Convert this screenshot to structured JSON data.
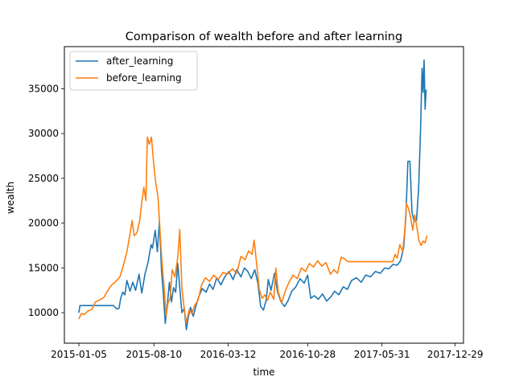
{
  "chart_data": {
    "type": "line",
    "title": "Comparison of wealth before and after learning",
    "xlabel": "time",
    "ylabel": "wealth",
    "x_ticks": [
      "2015-01-05",
      "2015-08-10",
      "2016-03-12",
      "2016-10-28",
      "2017-05-31",
      "2017-12-29"
    ],
    "y_ticks": [
      10000,
      15000,
      20000,
      25000,
      30000,
      35000
    ],
    "xlim": [
      "2014-11-24",
      "2018-01-22"
    ],
    "ylim": [
      6600,
      39700
    ],
    "grid": false,
    "legend_position": "top-left",
    "series": [
      {
        "name": "after_learning",
        "color": "#1f77b4",
        "points": [
          [
            "2015-01-05",
            10000
          ],
          [
            "2015-01-08",
            10800
          ],
          [
            "2015-01-20",
            10800
          ],
          [
            "2015-02-15",
            10800
          ],
          [
            "2015-03-20",
            10800
          ],
          [
            "2015-04-15",
            10800
          ],
          [
            "2015-04-25",
            10400
          ],
          [
            "2015-05-01",
            10500
          ],
          [
            "2015-05-06",
            11600
          ],
          [
            "2015-05-12",
            12300
          ],
          [
            "2015-05-18",
            12000
          ],
          [
            "2015-05-24",
            13600
          ],
          [
            "2015-06-02",
            12400
          ],
          [
            "2015-06-10",
            13400
          ],
          [
            "2015-06-18",
            12500
          ],
          [
            "2015-06-28",
            14300
          ],
          [
            "2015-07-06",
            12200
          ],
          [
            "2015-07-15",
            14300
          ],
          [
            "2015-07-24",
            15600
          ],
          [
            "2015-08-02",
            17600
          ],
          [
            "2015-08-06",
            17200
          ],
          [
            "2015-08-14",
            19200
          ],
          [
            "2015-08-20",
            16800
          ],
          [
            "2015-08-26",
            20200
          ],
          [
            "2015-09-01",
            14700
          ],
          [
            "2015-09-06",
            12300
          ],
          [
            "2015-09-12",
            8800
          ],
          [
            "2015-09-18",
            11000
          ],
          [
            "2015-09-24",
            13400
          ],
          [
            "2015-09-30",
            11200
          ],
          [
            "2015-10-06",
            12800
          ],
          [
            "2015-10-12",
            12300
          ],
          [
            "2015-10-18",
            15500
          ],
          [
            "2015-10-24",
            12800
          ],
          [
            "2015-10-30",
            10000
          ],
          [
            "2015-11-06",
            10500
          ],
          [
            "2015-11-12",
            8100
          ],
          [
            "2015-11-18",
            9600
          ],
          [
            "2015-11-24",
            10600
          ],
          [
            "2015-12-02",
            9600
          ],
          [
            "2015-12-10",
            10800
          ],
          [
            "2015-12-18",
            11800
          ],
          [
            "2015-12-28",
            12700
          ],
          [
            "2016-01-08",
            12300
          ],
          [
            "2016-01-18",
            13200
          ],
          [
            "2016-01-28",
            12600
          ],
          [
            "2016-02-08",
            13900
          ],
          [
            "2016-02-20",
            13100
          ],
          [
            "2016-03-02",
            14000
          ],
          [
            "2016-03-14",
            14600
          ],
          [
            "2016-03-26",
            13700
          ],
          [
            "2016-04-06",
            14800
          ],
          [
            "2016-04-18",
            14000
          ],
          [
            "2016-04-28",
            15000
          ],
          [
            "2016-05-08",
            14600
          ],
          [
            "2016-05-18",
            13800
          ],
          [
            "2016-05-28",
            14800
          ],
          [
            "2016-06-06",
            13300
          ],
          [
            "2016-06-14",
            10700
          ],
          [
            "2016-06-22",
            10300
          ],
          [
            "2016-06-30",
            11400
          ],
          [
            "2016-07-06",
            13700
          ],
          [
            "2016-07-14",
            12500
          ],
          [
            "2016-07-24",
            14400
          ],
          [
            "2016-08-02",
            12300
          ],
          [
            "2016-08-12",
            11200
          ],
          [
            "2016-08-22",
            10700
          ],
          [
            "2016-09-01",
            11300
          ],
          [
            "2016-09-12",
            12400
          ],
          [
            "2016-09-24",
            12900
          ],
          [
            "2016-10-06",
            13800
          ],
          [
            "2016-10-18",
            13300
          ],
          [
            "2016-10-28",
            14200
          ],
          [
            "2016-11-06",
            11600
          ],
          [
            "2016-11-16",
            11900
          ],
          [
            "2016-11-28",
            11500
          ],
          [
            "2016-12-10",
            12100
          ],
          [
            "2016-12-22",
            11300
          ],
          [
            "2017-01-04",
            11800
          ],
          [
            "2017-01-14",
            12400
          ],
          [
            "2017-01-26",
            12000
          ],
          [
            "2017-02-08",
            12900
          ],
          [
            "2017-02-20",
            12600
          ],
          [
            "2017-03-04",
            13600
          ],
          [
            "2017-03-18",
            13900
          ],
          [
            "2017-04-01",
            13400
          ],
          [
            "2017-04-14",
            14200
          ],
          [
            "2017-04-28",
            14000
          ],
          [
            "2017-05-12",
            14600
          ],
          [
            "2017-05-26",
            14400
          ],
          [
            "2017-06-08",
            15000
          ],
          [
            "2017-06-20",
            14900
          ],
          [
            "2017-07-02",
            15400
          ],
          [
            "2017-07-14",
            15300
          ],
          [
            "2017-07-24",
            15800
          ],
          [
            "2017-08-02",
            17300
          ],
          [
            "2017-08-08",
            20600
          ],
          [
            "2017-08-14",
            26900
          ],
          [
            "2017-08-20",
            26900
          ],
          [
            "2017-08-26",
            21200
          ],
          [
            "2017-09-01",
            20200
          ],
          [
            "2017-09-08",
            20300
          ],
          [
            "2017-09-14",
            23800
          ],
          [
            "2017-09-20",
            30600
          ],
          [
            "2017-09-24",
            37300
          ],
          [
            "2017-09-27",
            34600
          ],
          [
            "2017-09-30",
            38200
          ],
          [
            "2017-10-03",
            32700
          ],
          [
            "2017-10-06",
            34900
          ]
        ]
      },
      {
        "name": "before_learning",
        "color": "#ff7f0e",
        "points": [
          [
            "2015-01-05",
            9300
          ],
          [
            "2015-01-12",
            9900
          ],
          [
            "2015-01-20",
            9800
          ],
          [
            "2015-02-01",
            10200
          ],
          [
            "2015-02-12",
            10400
          ],
          [
            "2015-02-22",
            11200
          ],
          [
            "2015-03-05",
            11400
          ],
          [
            "2015-03-18",
            11700
          ],
          [
            "2015-03-30",
            12500
          ],
          [
            "2015-04-10",
            13100
          ],
          [
            "2015-04-22",
            13500
          ],
          [
            "2015-05-04",
            14000
          ],
          [
            "2015-05-14",
            15300
          ],
          [
            "2015-05-24",
            16800
          ],
          [
            "2015-06-02",
            18800
          ],
          [
            "2015-06-08",
            20300
          ],
          [
            "2015-06-14",
            18600
          ],
          [
            "2015-06-22",
            18900
          ],
          [
            "2015-06-30",
            20300
          ],
          [
            "2015-07-06",
            22400
          ],
          [
            "2015-07-12",
            24000
          ],
          [
            "2015-07-18",
            22500
          ],
          [
            "2015-07-22",
            29600
          ],
          [
            "2015-07-28",
            28800
          ],
          [
            "2015-08-03",
            29600
          ],
          [
            "2015-08-09",
            26800
          ],
          [
            "2015-08-15",
            24600
          ],
          [
            "2015-08-22",
            22900
          ],
          [
            "2015-08-28",
            18900
          ],
          [
            "2015-09-03",
            15400
          ],
          [
            "2015-09-09",
            12700
          ],
          [
            "2015-09-14",
            9600
          ],
          [
            "2015-09-20",
            11100
          ],
          [
            "2015-09-26",
            11600
          ],
          [
            "2015-10-02",
            14800
          ],
          [
            "2015-10-10",
            14000
          ],
          [
            "2015-10-18",
            16200
          ],
          [
            "2015-10-24",
            19300
          ],
          [
            "2015-10-30",
            12800
          ],
          [
            "2015-11-06",
            10400
          ],
          [
            "2015-11-12",
            8900
          ],
          [
            "2015-11-20",
            10300
          ],
          [
            "2015-11-28",
            9900
          ],
          [
            "2015-12-06",
            10800
          ],
          [
            "2015-12-16",
            11400
          ],
          [
            "2015-12-26",
            13100
          ],
          [
            "2016-01-06",
            13900
          ],
          [
            "2016-01-18",
            13500
          ],
          [
            "2016-01-30",
            14200
          ],
          [
            "2016-02-12",
            13700
          ],
          [
            "2016-02-26",
            14500
          ],
          [
            "2016-03-10",
            14300
          ],
          [
            "2016-03-24",
            14900
          ],
          [
            "2016-04-06",
            14400
          ],
          [
            "2016-04-18",
            16300
          ],
          [
            "2016-04-30",
            15900
          ],
          [
            "2016-05-10",
            16900
          ],
          [
            "2016-05-20",
            16500
          ],
          [
            "2016-05-26",
            18100
          ],
          [
            "2016-06-02",
            15600
          ],
          [
            "2016-06-10",
            12600
          ],
          [
            "2016-06-18",
            11600
          ],
          [
            "2016-06-26",
            12000
          ],
          [
            "2016-07-04",
            11400
          ],
          [
            "2016-07-12",
            12300
          ],
          [
            "2016-07-22",
            11500
          ],
          [
            "2016-07-28",
            15000
          ],
          [
            "2016-08-04",
            12300
          ],
          [
            "2016-08-14",
            11100
          ],
          [
            "2016-08-24",
            12400
          ],
          [
            "2016-09-04",
            13400
          ],
          [
            "2016-09-16",
            14200
          ],
          [
            "2016-09-28",
            13800
          ],
          [
            "2016-10-10",
            15000
          ],
          [
            "2016-10-22",
            14600
          ],
          [
            "2016-11-02",
            15500
          ],
          [
            "2016-11-14",
            15100
          ],
          [
            "2016-11-26",
            15800
          ],
          [
            "2016-12-08",
            15200
          ],
          [
            "2016-12-20",
            15600
          ],
          [
            "2017-01-02",
            14300
          ],
          [
            "2017-01-12",
            14800
          ],
          [
            "2017-01-22",
            14400
          ],
          [
            "2017-02-02",
            16200
          ],
          [
            "2017-02-12",
            16000
          ],
          [
            "2017-02-22",
            15700
          ],
          [
            "2017-03-10",
            15700
          ],
          [
            "2017-04-01",
            15700
          ],
          [
            "2017-05-01",
            15700
          ],
          [
            "2017-06-01",
            15700
          ],
          [
            "2017-06-20",
            15700
          ],
          [
            "2017-07-01",
            15700
          ],
          [
            "2017-07-08",
            16500
          ],
          [
            "2017-07-14",
            16100
          ],
          [
            "2017-07-22",
            17600
          ],
          [
            "2017-07-30",
            16800
          ],
          [
            "2017-08-05",
            19200
          ],
          [
            "2017-08-10",
            22200
          ],
          [
            "2017-08-16",
            21600
          ],
          [
            "2017-08-22",
            20600
          ],
          [
            "2017-08-28",
            19200
          ],
          [
            "2017-09-03",
            20900
          ],
          [
            "2017-09-09",
            19600
          ],
          [
            "2017-09-15",
            18100
          ],
          [
            "2017-09-21",
            17500
          ],
          [
            "2017-09-27",
            18000
          ],
          [
            "2017-10-03",
            17800
          ],
          [
            "2017-10-08",
            18600
          ]
        ]
      }
    ]
  }
}
